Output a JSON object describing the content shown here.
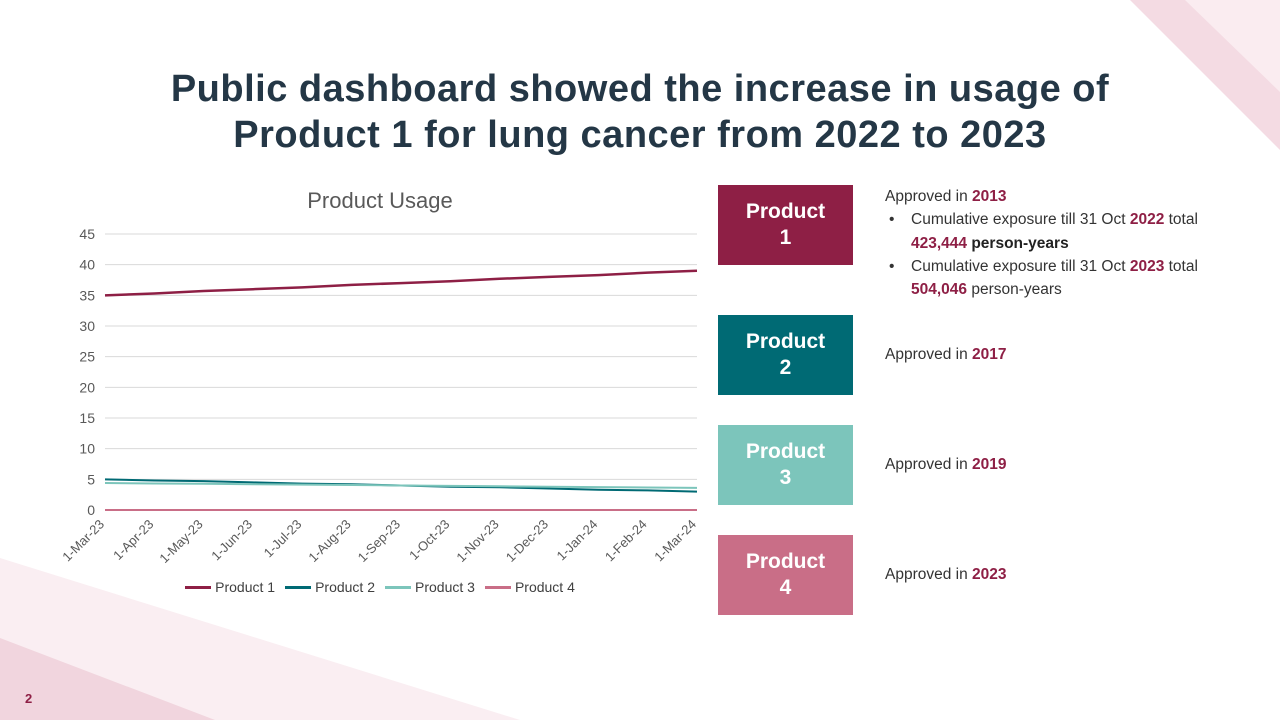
{
  "slide": {
    "title_line1": "Public dashboard showed the increase in usage of",
    "title_line2": "Product 1 for lung cancer from 2022 to 2023",
    "page_number": "2",
    "bullet_char": "•"
  },
  "colors": {
    "title": "#243746",
    "accent_maroon": "#8E1F45",
    "teal": "#006A74",
    "light_teal": "#7CC5BB",
    "rose": "#C96E87",
    "gridline": "#D9D9D9",
    "axis_text": "#595959"
  },
  "chart_data": {
    "type": "line",
    "title": "Product Usage",
    "xlabel": "",
    "ylabel": "",
    "ylim": [
      0,
      45
    ],
    "yticks": [
      0,
      5,
      10,
      15,
      20,
      25,
      30,
      35,
      40,
      45
    ],
    "grid": true,
    "legend_position": "bottom",
    "x": [
      "1-Mar-23",
      "1-Apr-23",
      "1-May-23",
      "1-Jun-23",
      "1-Jul-23",
      "1-Aug-23",
      "1-Sep-23",
      "1-Oct-23",
      "1-Nov-23",
      "1-Dec-23",
      "1-Jan-24",
      "1-Feb-24",
      "1-Mar-24"
    ],
    "series": [
      {
        "name": "Product 1",
        "color": "#8E1F45",
        "values": [
          35.0,
          35.3,
          35.7,
          36.0,
          36.3,
          36.7,
          37.0,
          37.3,
          37.7,
          38.0,
          38.3,
          38.7,
          39.0
        ]
      },
      {
        "name": "Product 2",
        "color": "#006A74",
        "values": [
          5.0,
          4.8,
          4.7,
          4.5,
          4.3,
          4.2,
          4.0,
          3.8,
          3.7,
          3.5,
          3.3,
          3.2,
          3.0
        ]
      },
      {
        "name": "Product 3",
        "color": "#7CC5BB",
        "values": [
          4.4,
          4.33,
          4.27,
          4.2,
          4.13,
          4.07,
          4.0,
          3.93,
          3.87,
          3.8,
          3.73,
          3.67,
          3.6
        ]
      },
      {
        "name": "Product 4",
        "color": "#C96E87",
        "values": [
          0,
          0,
          0,
          0,
          0,
          0,
          0,
          0,
          0,
          0,
          0,
          0,
          0
        ]
      }
    ]
  },
  "products": [
    {
      "label": "Product 1",
      "color": "#8E1F45",
      "details": [
        {
          "bullet": false,
          "segments": [
            {
              "t": "Approved in ",
              "s": "n"
            },
            {
              "t": "2013",
              "s": "a"
            }
          ]
        },
        {
          "bullet": true,
          "segments": [
            {
              "t": "Cumulative exposure till 31 Oct ",
              "s": "n"
            },
            {
              "t": "2022",
              "s": "a"
            },
            {
              "t": " total ",
              "s": "n"
            },
            {
              "t": "423,444",
              "s": "a"
            },
            {
              "t": " ",
              "s": "n"
            },
            {
              "t": "person-years",
              "s": "b"
            }
          ]
        },
        {
          "bullet": true,
          "segments": [
            {
              "t": "Cumulative exposure till 31 Oct ",
              "s": "n"
            },
            {
              "t": "2023",
              "s": "a"
            },
            {
              "t": " total ",
              "s": "n"
            },
            {
              "t": "504,046",
              "s": "a"
            },
            {
              "t": " person-years",
              "s": "n"
            }
          ]
        }
      ]
    },
    {
      "label": "Product 2",
      "color": "#006A74",
      "details": [
        {
          "bullet": false,
          "segments": [
            {
              "t": "Approved in ",
              "s": "n"
            },
            {
              "t": "2017",
              "s": "a"
            }
          ]
        }
      ]
    },
    {
      "label": "Product 3",
      "color": "#7CC5BB",
      "details": [
        {
          "bullet": false,
          "segments": [
            {
              "t": "Approved in ",
              "s": "n"
            },
            {
              "t": "2019",
              "s": "a"
            }
          ]
        }
      ]
    },
    {
      "label": "Product 4",
      "color": "#C96E87",
      "details": [
        {
          "bullet": false,
          "segments": [
            {
              "t": "Approved in ",
              "s": "n"
            },
            {
              "t": "2023",
              "s": "a"
            }
          ]
        }
      ]
    }
  ]
}
